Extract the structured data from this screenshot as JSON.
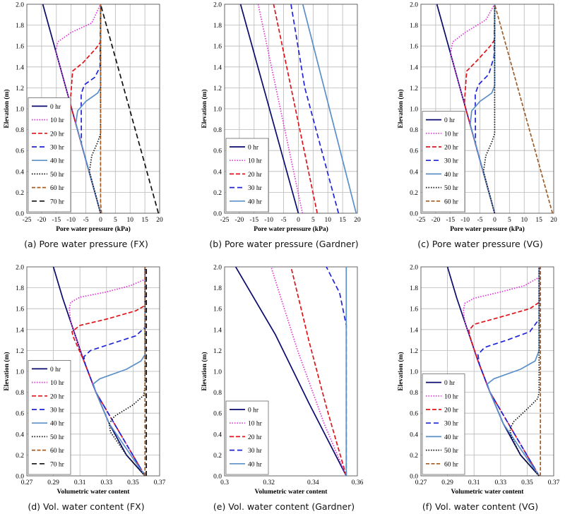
{
  "colors": {
    "0 hr": "#0a0a6e",
    "10 hr": "#e033d6",
    "20 hr": "#e0141a",
    "30 hr": "#1f24d8",
    "40 hr": "#5b8fc7",
    "50 hr": "#111111",
    "60 hr": "#a85a1c",
    "70 hr": "#111111"
  },
  "dashes": {
    "0 hr": "",
    "10 hr": "1.5,2",
    "20 hr": "6,3",
    "30 hr": "7,4",
    "40 hr": "",
    "50 hr": "1.5,2",
    "60 hr": "5,2.5",
    "70 hr": "7,4"
  },
  "chart_data": [
    {
      "type": "line",
      "caption": "(a) Pore water pressure (FX)",
      "xlabel": "Pore water pressure (kPa)",
      "ylabel": "Elevation (m)",
      "xlim": [
        -25,
        20
      ],
      "ylim": [
        0,
        2
      ],
      "xticks": [
        "-25",
        "-20",
        "-15",
        "-10",
        "-5",
        "0",
        "5",
        "10",
        "15",
        "20"
      ],
      "yticks": [
        "0.0",
        "0.2",
        "0.4",
        "0.6",
        "0.8",
        "1.0",
        "1.2",
        "1.4",
        "1.6",
        "1.8",
        "2.0"
      ],
      "grid": true,
      "legend": "bottom-left",
      "series": [
        {
          "name": "0 hr",
          "x": [
            0,
            -19.6
          ],
          "y": [
            0,
            2
          ]
        },
        {
          "name": "10 hr",
          "x": [
            0,
            -15.2,
            -14.5,
            -10,
            -3,
            0
          ],
          "y": [
            0,
            1.55,
            1.64,
            1.73,
            1.82,
            2.0
          ]
        },
        {
          "name": "20 hr",
          "x": [
            0,
            -10.3,
            -9.5,
            -6,
            -1.5,
            0,
            0
          ],
          "y": [
            0,
            1.05,
            1.36,
            1.44,
            1.58,
            1.64,
            2.0
          ]
        },
        {
          "name": "30 hr",
          "x": [
            0,
            -6.5,
            -6.6,
            -5.5,
            -2,
            -0.2,
            0
          ],
          "y": [
            0,
            0.66,
            1.14,
            1.23,
            1.3,
            1.4,
            2.0
          ]
        },
        {
          "name": "40 hr",
          "x": [
            0,
            -8.4,
            -7.8,
            -5,
            -1,
            0,
            0
          ],
          "y": [
            0,
            0.86,
            0.98,
            1.07,
            1.15,
            1.2,
            2.0
          ]
        },
        {
          "name": "50 hr",
          "x": [
            0,
            -3.8,
            -3,
            -1,
            0,
            0
          ],
          "y": [
            0,
            0.4,
            0.55,
            0.68,
            0.76,
            2.0
          ]
        },
        {
          "name": "60 hr",
          "x": [
            0.3,
            0,
            0
          ],
          "y": [
            0,
            0.1,
            2.0
          ]
        },
        {
          "name": "70 hr",
          "x": [
            19.6,
            0
          ],
          "y": [
            0,
            2.0
          ]
        }
      ]
    },
    {
      "type": "line",
      "caption": "(b) Pore water pressure (Gardner)",
      "xlabel": "Pore water pressure (kPa)",
      "ylabel": "Elevation (m)",
      "xlim": [
        -25,
        20
      ],
      "ylim": [
        0,
        2
      ],
      "xticks": [
        "-25",
        "-20",
        "-15",
        "-10",
        "-5",
        "0",
        "5",
        "10",
        "15",
        "20"
      ],
      "yticks": [
        "0.0",
        "0.2",
        "0.4",
        "0.6",
        "0.8",
        "1.0",
        "1.2",
        "1.4",
        "1.6",
        "1.8",
        "2.0"
      ],
      "grid": true,
      "legend": "bottom-left",
      "series": [
        {
          "name": "0 hr",
          "x": [
            0,
            -19.6
          ],
          "y": [
            0,
            2
          ]
        },
        {
          "name": "10 hr",
          "x": [
            1.4,
            -13.6
          ],
          "y": [
            0,
            2
          ]
        },
        {
          "name": "20 hr",
          "x": [
            6.4,
            -8.4
          ],
          "y": [
            0,
            2
          ]
        },
        {
          "name": "30 hr",
          "x": [
            13.6,
            2.2,
            -2.5
          ],
          "y": [
            0,
            1.2,
            2
          ]
        },
        {
          "name": "40 hr",
          "x": [
            19.6,
            1.5
          ],
          "y": [
            0,
            2
          ]
        }
      ]
    },
    {
      "type": "line",
      "caption": "(c) Pore water pressure (VG)",
      "xlabel": "Pore water pressure (kPa)",
      "ylabel": "Elevation (m)",
      "xlim": [
        -25,
        20
      ],
      "ylim": [
        0,
        2
      ],
      "xticks": [
        "-25",
        "-20",
        "-15",
        "-10",
        "-5",
        "0",
        "5",
        "10",
        "15",
        "20"
      ],
      "yticks": [
        "0.0",
        "0.2",
        "0.4",
        "0.6",
        "0.8",
        "1.0",
        "1.2",
        "1.4",
        "1.6",
        "1.8",
        "2.0"
      ],
      "grid": true,
      "legend": "bottom-left",
      "series": [
        {
          "name": "0 hr",
          "x": [
            0,
            -19.6
          ],
          "y": [
            0,
            2
          ]
        },
        {
          "name": "10 hr",
          "x": [
            0,
            -15,
            -14.2,
            -10,
            -3,
            0
          ],
          "y": [
            0,
            1.53,
            1.64,
            1.73,
            1.85,
            2.0
          ]
        },
        {
          "name": "20 hr",
          "x": [
            0,
            -10.3,
            -9.5,
            -6,
            -1.5,
            0,
            0
          ],
          "y": [
            0,
            1.05,
            1.36,
            1.46,
            1.6,
            1.66,
            2.0
          ]
        },
        {
          "name": "30 hr",
          "x": [
            0,
            -6.5,
            -6.6,
            -5.5,
            -2,
            -0.2,
            0
          ],
          "y": [
            0,
            0.66,
            1.14,
            1.23,
            1.33,
            1.5,
            2.0
          ]
        },
        {
          "name": "40 hr",
          "x": [
            0,
            -8.3,
            -7.8,
            -5,
            -1,
            0,
            0
          ],
          "y": [
            0,
            0.85,
            0.98,
            1.07,
            1.15,
            1.22,
            2.0
          ]
        },
        {
          "name": "50 hr",
          "x": [
            0,
            -3.8,
            -3,
            -1,
            0,
            0
          ],
          "y": [
            0,
            0.4,
            0.55,
            0.68,
            0.76,
            2.0
          ]
        },
        {
          "name": "60 hr",
          "x": [
            19.6,
            0
          ],
          "y": [
            0,
            2.0
          ]
        }
      ]
    },
    {
      "type": "line",
      "caption": "(d) Vol. water content (FX)",
      "xlabel": "Volumetric water content",
      "ylabel": "Elevation (m)",
      "xlim": [
        0.27,
        0.37
      ],
      "ylim": [
        0,
        2
      ],
      "xticks": [
        "0.27",
        "0.29",
        "0.31",
        "0.33",
        "0.35",
        "0.37"
      ],
      "yticks": [
        "0.0",
        "0.2",
        "0.4",
        "0.6",
        "0.8",
        "1.0",
        "1.2",
        "1.4",
        "1.6",
        "1.8",
        "2.0"
      ],
      "grid": true,
      "legend": "bottom-left",
      "series": [
        {
          "name": "0 hr",
          "x": [
            0.359,
            0.345,
            0.332,
            0.322,
            0.313,
            0.305,
            0.297,
            0.29
          ],
          "y": [
            0,
            0.2,
            0.5,
            0.8,
            1.1,
            1.4,
            1.7,
            2.0
          ]
        },
        {
          "name": "10 hr",
          "x": [
            0.359,
            0.322,
            0.313,
            0.305,
            0.303,
            0.302,
            0.303,
            0.31,
            0.33,
            0.348,
            0.359,
            0.359
          ],
          "y": [
            0,
            0.8,
            1.1,
            1.4,
            1.48,
            1.6,
            1.66,
            1.71,
            1.76,
            1.82,
            1.88,
            2.0
          ]
        },
        {
          "name": "20 hr",
          "x": [
            0.359,
            0.322,
            0.313,
            0.305,
            0.304,
            0.31,
            0.33,
            0.352,
            0.359,
            0.359
          ],
          "y": [
            0,
            0.8,
            1.1,
            1.33,
            1.38,
            1.44,
            1.5,
            1.58,
            1.63,
            2.0
          ]
        },
        {
          "name": "30 hr",
          "x": [
            0.359,
            0.322,
            0.314,
            0.313,
            0.318,
            0.335,
            0.352,
            0.359,
            0.359
          ],
          "y": [
            0,
            0.8,
            1.07,
            1.14,
            1.2,
            1.27,
            1.34,
            1.42,
            2.0
          ]
        },
        {
          "name": "40 hr",
          "x": [
            0.359,
            0.332,
            0.322,
            0.32,
            0.325,
            0.345,
            0.356,
            0.359,
            0.359
          ],
          "y": [
            0,
            0.5,
            0.8,
            0.88,
            0.93,
            1.02,
            1.1,
            1.16,
            2.0
          ]
        },
        {
          "name": "50 hr",
          "x": [
            0.359,
            0.345,
            0.333,
            0.332,
            0.336,
            0.35,
            0.358,
            0.359,
            0.359
          ],
          "y": [
            0,
            0.2,
            0.42,
            0.5,
            0.57,
            0.68,
            0.77,
            0.85,
            2.0
          ]
        },
        {
          "name": "60 hr",
          "x": [
            0.359,
            0.359
          ],
          "y": [
            0,
            2.0
          ]
        },
        {
          "name": "70 hr",
          "x": [
            0.36,
            0.36
          ],
          "y": [
            0,
            2.0
          ]
        }
      ]
    },
    {
      "type": "line",
      "caption": "(e) Vol. water content (Gardner)",
      "xlabel": "Volumetric water content",
      "ylabel": "Elevation (m)",
      "xlim": [
        0.3,
        0.36
      ],
      "ylim": [
        0,
        2
      ],
      "xticks": [
        "0.3",
        "0.32",
        "0.34",
        "0.36"
      ],
      "yticks": [
        "0.0",
        "0.2",
        "0.4",
        "0.6",
        "0.8",
        "1.0",
        "1.2",
        "1.4",
        "1.6",
        "1.8",
        "2.0"
      ],
      "grid": false,
      "legend": "bottom-left",
      "series": [
        {
          "name": "0 hr",
          "x": [
            0.355,
            0.338,
            0.323,
            0.305
          ],
          "y": [
            0,
            0.7,
            1.35,
            2.0
          ]
        },
        {
          "name": "10 hr",
          "x": [
            0.355,
            0.345,
            0.333,
            0.321
          ],
          "y": [
            0,
            0.5,
            1.2,
            2.0
          ]
        },
        {
          "name": "20 hr",
          "x": [
            0.355,
            0.346,
            0.338,
            0.33
          ],
          "y": [
            0,
            0.66,
            1.3,
            2.0
          ]
        },
        {
          "name": "30 hr",
          "x": [
            0.355,
            0.355,
            0.352,
            0.346
          ],
          "y": [
            0,
            1.44,
            1.75,
            2.0
          ]
        },
        {
          "name": "40 hr",
          "x": [
            0.355,
            0.355
          ],
          "y": [
            0,
            2.0
          ]
        }
      ]
    },
    {
      "type": "line",
      "caption": "(f) Vol. water content (VG)",
      "xlabel": "Volumetric water content",
      "ylabel": "Elevation (m)",
      "xlim": [
        0.27,
        0.37
      ],
      "ylim": [
        0,
        2
      ],
      "xticks": [
        "0.27",
        "0.29",
        "0.31",
        "0.33",
        "0.35",
        "0.37"
      ],
      "yticks": [
        "0.0",
        "0.2",
        "0.4",
        "0.6",
        "0.8",
        "1.0",
        "1.2",
        "1.4",
        "1.6",
        "1.8",
        "2.0"
      ],
      "grid": true,
      "legend": "bottom-left",
      "series": [
        {
          "name": "0 hr",
          "x": [
            0.359,
            0.345,
            0.332,
            0.322,
            0.313,
            0.305,
            0.297,
            0.29
          ],
          "y": [
            0,
            0.2,
            0.5,
            0.8,
            1.1,
            1.4,
            1.7,
            2.0
          ]
        },
        {
          "name": "10 hr",
          "x": [
            0.359,
            0.322,
            0.313,
            0.305,
            0.303,
            0.302,
            0.303,
            0.31,
            0.33,
            0.348,
            0.359,
            0.359
          ],
          "y": [
            0,
            0.8,
            1.1,
            1.4,
            1.48,
            1.58,
            1.65,
            1.7,
            1.76,
            1.82,
            1.9,
            2.0
          ]
        },
        {
          "name": "20 hr",
          "x": [
            0.359,
            0.322,
            0.313,
            0.307,
            0.306,
            0.31,
            0.33,
            0.352,
            0.359,
            0.359
          ],
          "y": [
            0,
            0.8,
            1.1,
            1.33,
            1.39,
            1.45,
            1.52,
            1.6,
            1.66,
            2.0
          ]
        },
        {
          "name": "30 hr",
          "x": [
            0.359,
            0.322,
            0.314,
            0.313,
            0.318,
            0.335,
            0.352,
            0.359,
            0.359
          ],
          "y": [
            0,
            0.8,
            1.07,
            1.16,
            1.23,
            1.3,
            1.38,
            1.5,
            2.0
          ]
        },
        {
          "name": "40 hr",
          "x": [
            0.359,
            0.332,
            0.322,
            0.32,
            0.325,
            0.345,
            0.356,
            0.359,
            0.359
          ],
          "y": [
            0,
            0.5,
            0.8,
            0.88,
            0.93,
            1.02,
            1.1,
            1.2,
            2.0
          ]
        },
        {
          "name": "50 hr",
          "x": [
            0.359,
            0.345,
            0.338,
            0.337,
            0.34,
            0.35,
            0.358,
            0.359,
            0.359
          ],
          "y": [
            0,
            0.2,
            0.38,
            0.45,
            0.52,
            0.64,
            0.74,
            0.8,
            2.0
          ]
        },
        {
          "name": "60 hr",
          "x": [
            0.36,
            0.36
          ],
          "y": [
            0,
            2.0
          ]
        }
      ]
    }
  ]
}
